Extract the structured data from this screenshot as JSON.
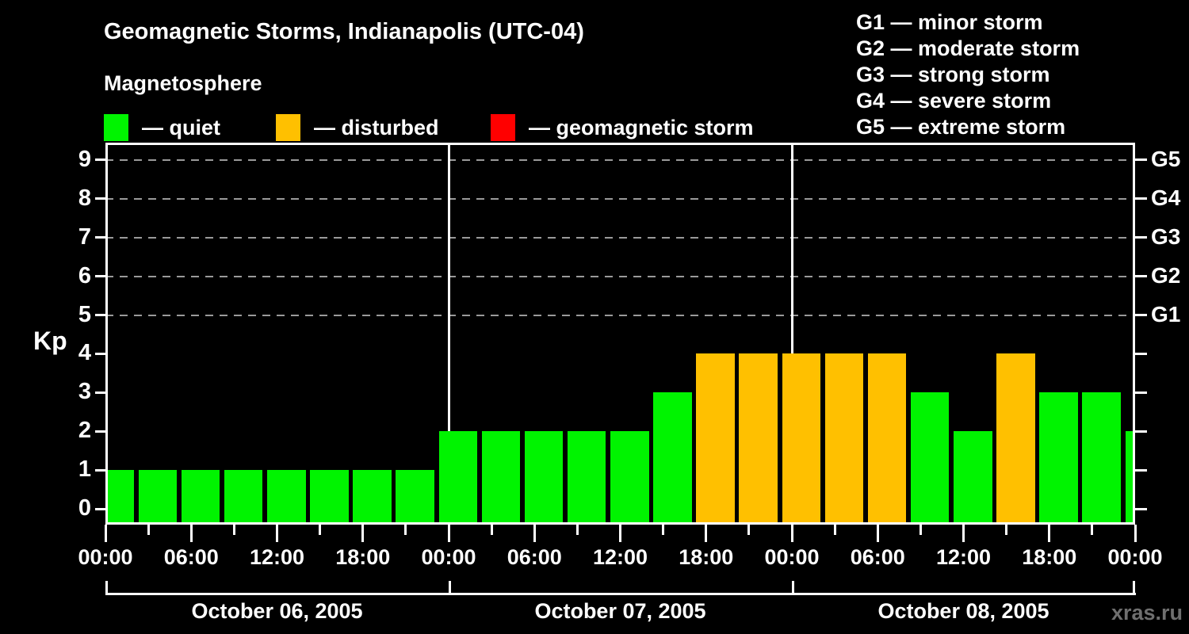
{
  "title": "Geomagnetic Storms, Indianapolis (UTC-04)",
  "subtitle": "Magnetosphere",
  "legend": {
    "items": [
      {
        "label": "— quiet",
        "status": "quiet",
        "color": "#00f400"
      },
      {
        "label": "— disturbed",
        "status": "disturbed",
        "color": "#ffc000"
      },
      {
        "label": "— geomagnetic storm",
        "status": "storm",
        "color": "#ff0000"
      }
    ]
  },
  "storm_scale_legend": [
    "G1 — minor storm",
    "G2 — moderate storm",
    "G3 — strong storm",
    "G4 — severe storm",
    "G5 — extreme storm"
  ],
  "watermark": "xras.ru",
  "chart_data": {
    "type": "bar",
    "ylabel": "Kp",
    "ylim": [
      0,
      9
    ],
    "yticks": [
      0,
      1,
      2,
      3,
      4,
      5,
      6,
      7,
      8,
      9
    ],
    "grid_levels_kp": [
      5,
      6,
      7,
      8,
      9
    ],
    "right_axis": [
      {
        "kp": 9,
        "label": "G5"
      },
      {
        "kp": 8,
        "label": "G4"
      },
      {
        "kp": 7,
        "label": "G3"
      },
      {
        "kp": 6,
        "label": "G2"
      },
      {
        "kp": 5,
        "label": "G1"
      }
    ],
    "x_major_tick_labels": [
      "00:00",
      "06:00",
      "12:00",
      "18:00",
      "00:00",
      "06:00",
      "12:00",
      "18:00",
      "00:00",
      "06:00",
      "12:00",
      "18:00",
      "00:00"
    ],
    "hours_per_bar": 3,
    "days": [
      {
        "date": "October 06, 2005",
        "bars": [
          {
            "kp": 1,
            "status": "quiet"
          },
          {
            "kp": 1,
            "status": "quiet"
          },
          {
            "kp": 1,
            "status": "quiet"
          },
          {
            "kp": 1,
            "status": "quiet"
          },
          {
            "kp": 1,
            "status": "quiet"
          },
          {
            "kp": 1,
            "status": "quiet"
          },
          {
            "kp": 1,
            "status": "quiet"
          },
          {
            "kp": 1,
            "status": "quiet"
          }
        ]
      },
      {
        "date": "October 07, 2005",
        "bars": [
          {
            "kp": 2,
            "status": "quiet"
          },
          {
            "kp": 2,
            "status": "quiet"
          },
          {
            "kp": 2,
            "status": "quiet"
          },
          {
            "kp": 2,
            "status": "quiet"
          },
          {
            "kp": 2,
            "status": "quiet"
          },
          {
            "kp": 3,
            "status": "quiet"
          },
          {
            "kp": 4,
            "status": "disturbed"
          },
          {
            "kp": 4,
            "status": "disturbed"
          }
        ]
      },
      {
        "date": "October 08, 2005",
        "bars": [
          {
            "kp": 4,
            "status": "disturbed"
          },
          {
            "kp": 4,
            "status": "disturbed"
          },
          {
            "kp": 4,
            "status": "disturbed"
          },
          {
            "kp": 3,
            "status": "quiet"
          },
          {
            "kp": 2,
            "status": "quiet"
          },
          {
            "kp": 4,
            "status": "disturbed"
          },
          {
            "kp": 3,
            "status": "quiet"
          },
          {
            "kp": 3,
            "status": "quiet"
          }
        ]
      },
      {
        "date": "",
        "bars": [
          {
            "kp": 2,
            "status": "quiet",
            "partial": true
          }
        ]
      }
    ],
    "status_colors": {
      "quiet": "#00f400",
      "disturbed": "#ffc000",
      "storm": "#ff0000"
    },
    "grid_on": true,
    "legend_position": "top"
  }
}
